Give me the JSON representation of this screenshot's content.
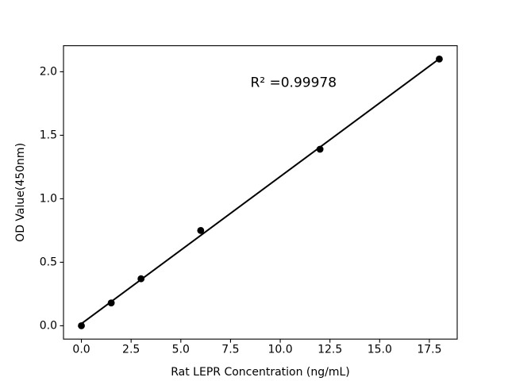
{
  "figure": {
    "background": "#ffffff"
  },
  "chart_data": {
    "type": "scatter",
    "title": "",
    "xlabel": "Rat LEPR Concentration (ng/mL)",
    "ylabel": "OD Value(450nm)",
    "annotation": {
      "text": "R² =0.99978",
      "x": 8.5,
      "y": 1.88
    },
    "x": [
      0,
      1.5,
      3,
      6,
      12,
      18
    ],
    "y": [
      0.0,
      0.18,
      0.37,
      0.75,
      1.39,
      2.1
    ],
    "fit": {
      "type": "linear",
      "show": true,
      "x_start": 0,
      "x_end": 18
    },
    "xlim": [
      -0.9,
      18.9
    ],
    "ylim": [
      -0.105,
      2.205
    ],
    "xticks": {
      "values": [
        0,
        2.5,
        5,
        7.5,
        10,
        12.5,
        15,
        17.5
      ],
      "labels": [
        "0.0",
        "2.5",
        "5.0",
        "7.5",
        "10.0",
        "12.5",
        "15.0",
        "17.5"
      ]
    },
    "yticks": {
      "values": [
        0,
        0.5,
        1,
        1.5,
        2
      ],
      "labels": [
        "0.0",
        "0.5",
        "1.0",
        "1.5",
        "2.0"
      ]
    },
    "colors": {
      "marker": "#000000",
      "line": "#000000",
      "axes": "#000000",
      "text": "#000000",
      "background": "#ffffff"
    },
    "grid": false,
    "legend": null
  }
}
